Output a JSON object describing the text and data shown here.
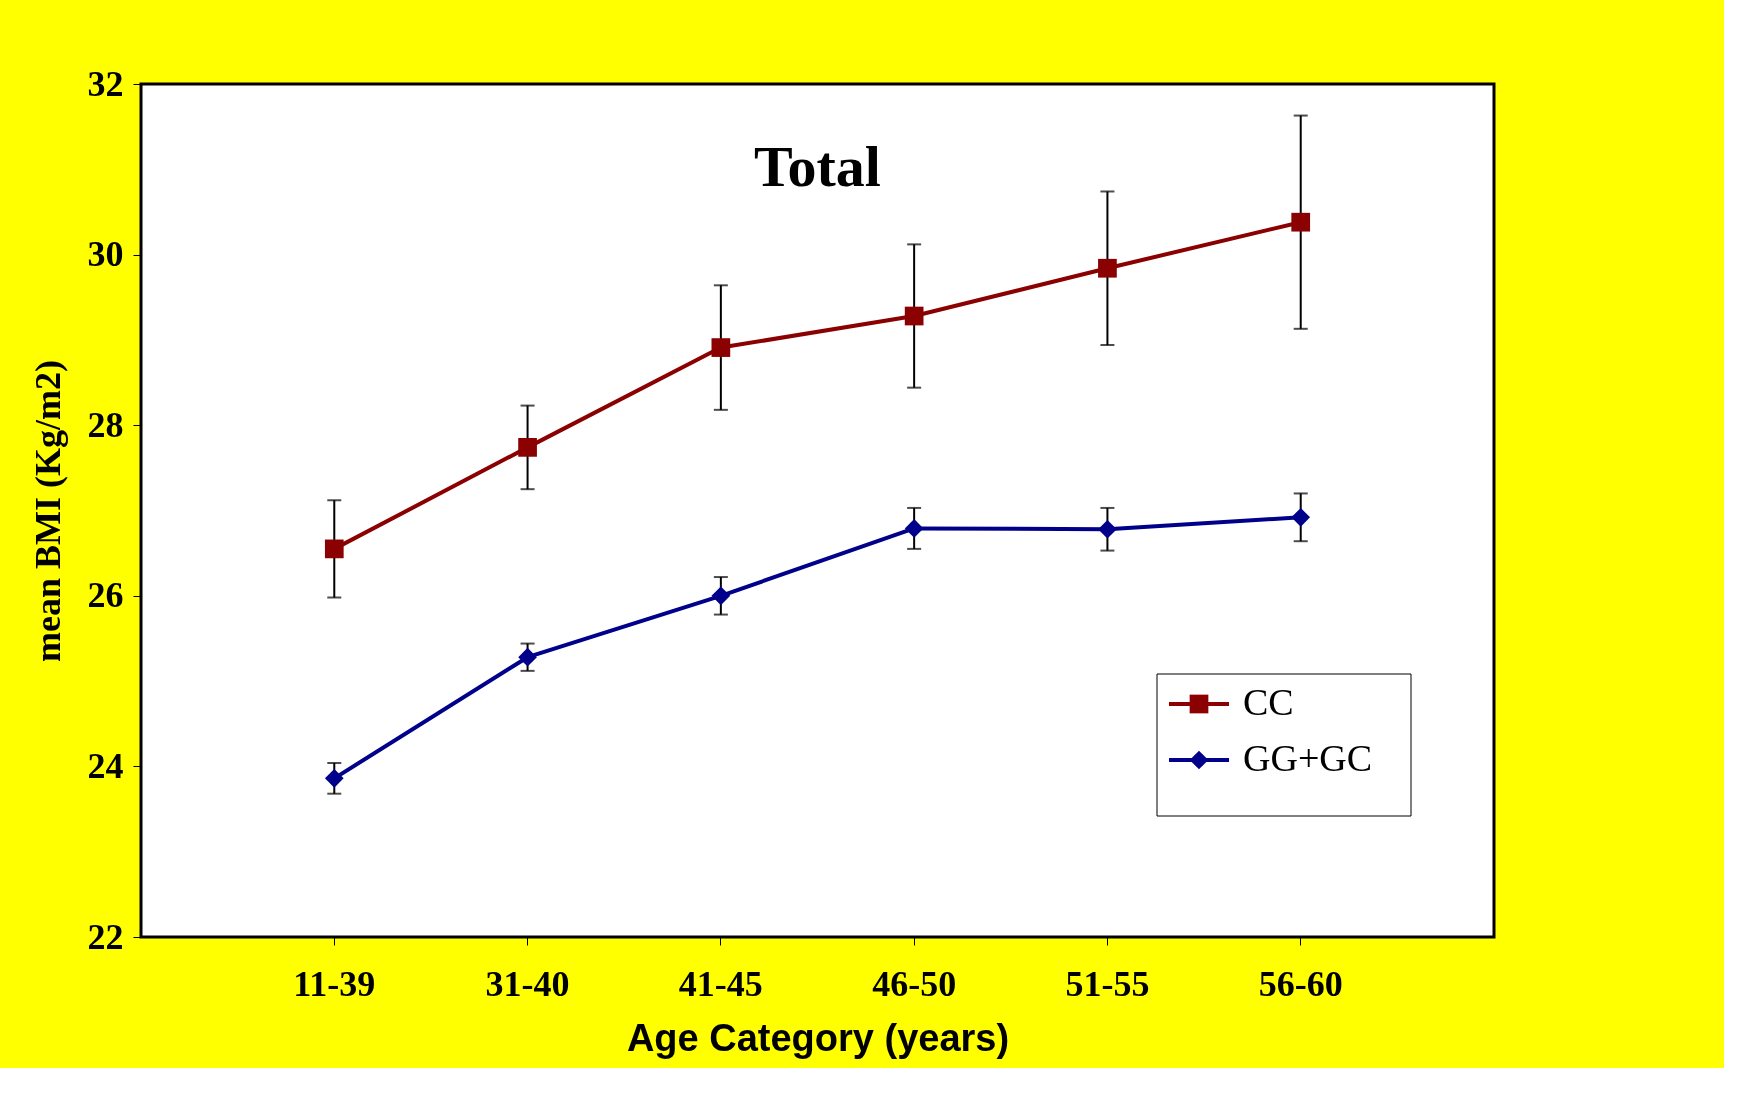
{
  "chart_data": {
    "type": "line",
    "title": "Total",
    "xlabel": "Age Category (years)",
    "ylabel": "mean BMI (Kg/m2)",
    "categories": [
      "11-39",
      "31-40",
      "41-45",
      "46-50",
      "51-55",
      "56-60"
    ],
    "series": [
      {
        "name": "CC",
        "color": "#8b0000",
        "marker": "square",
        "values": [
          26.55,
          27.74,
          28.91,
          29.28,
          29.84,
          30.38
        ],
        "errors": [
          0.57,
          0.49,
          0.73,
          0.84,
          0.9,
          1.25
        ]
      },
      {
        "name": "GG+GC",
        "color": "#00008b",
        "marker": "diamond",
        "values": [
          23.86,
          25.28,
          26.0,
          26.79,
          26.78,
          26.92
        ],
        "errors": [
          0.18,
          0.16,
          0.22,
          0.24,
          0.25,
          0.28
        ]
      }
    ],
    "ylim": [
      22,
      32
    ],
    "yticks": [
      22,
      24,
      26,
      28,
      30,
      32
    ],
    "grid": false,
    "legend": "bottom right",
    "line_style": "solid"
  }
}
